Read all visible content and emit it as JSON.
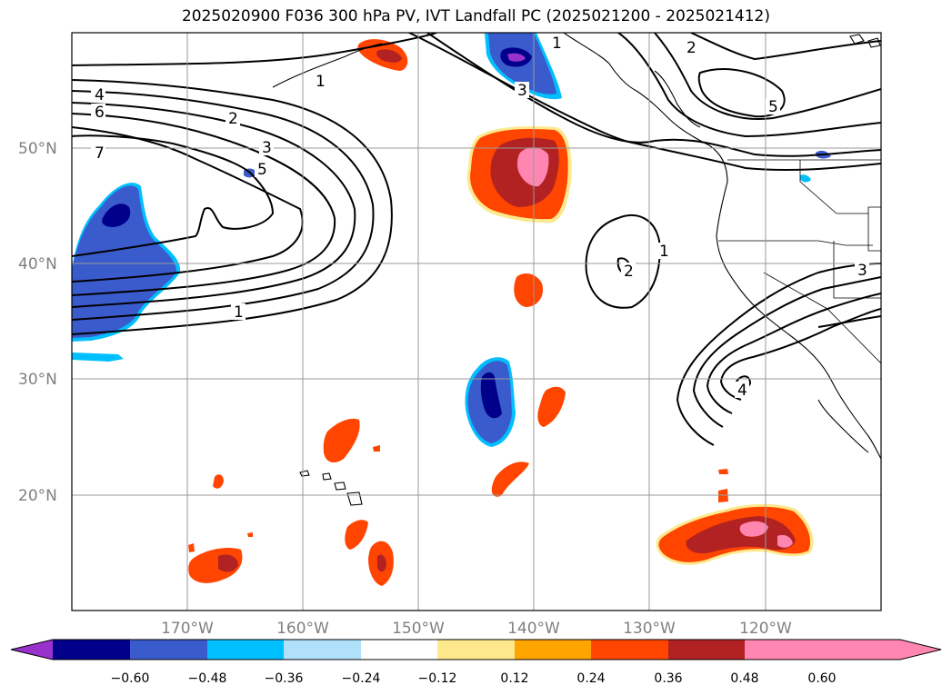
{
  "title": "2025020900 F036 300 hPa PV, IVT Landfall PC (2025021200 - 2025021412)",
  "map": {
    "projection": "equirectangular",
    "lon_range": [
      -180,
      -110
    ],
    "lat_range": [
      10,
      60
    ],
    "lon_ticks": [
      "170°W",
      "160°W",
      "150°W",
      "140°W",
      "130°W",
      "120°W"
    ],
    "lat_ticks": [
      "50°N",
      "40°N",
      "30°N",
      "20°N"
    ],
    "gridlines": true,
    "contour_labels": [
      "4",
      "6",
      "7",
      "2",
      "3",
      "5",
      "1",
      "1",
      "3",
      "1",
      "2",
      "5",
      "1",
      "2",
      "3",
      "4"
    ]
  },
  "colorbar": {
    "colors": [
      "#9932cc",
      "#00008b",
      "#3a5bcc",
      "#00bfff",
      "#b0e0fa",
      "#ffffff",
      "#fde98c",
      "#ffa500",
      "#ff4500",
      "#b22222",
      "#ff86b0"
    ],
    "tick_labels": [
      "−0.60",
      "−0.48",
      "−0.36",
      "−0.24",
      "−0.12",
      "0.12",
      "0.24",
      "0.36",
      "0.48",
      "0.60"
    ],
    "extend": "both"
  },
  "chart_data": {
    "type": "heatmap",
    "title": "2025020900 F036 300 hPa PV, IVT Landfall PC (2025021200 - 2025021412)",
    "xlabel": "",
    "ylabel": "",
    "xlim": [
      -180,
      -110
    ],
    "ylim": [
      10,
      60
    ],
    "levels": [
      -0.6,
      -0.48,
      -0.36,
      -0.24,
      -0.12,
      0.12,
      0.24,
      0.36,
      0.48,
      0.6
    ],
    "grid": true
  }
}
